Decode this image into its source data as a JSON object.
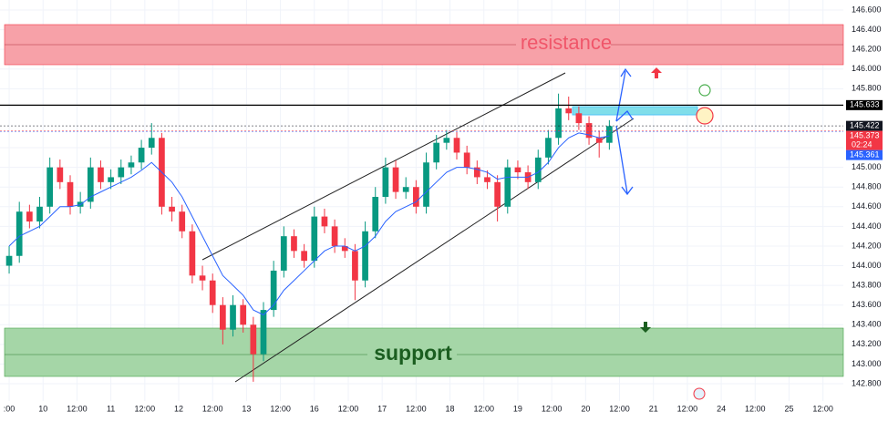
{
  "chart_data": {
    "type": "candlestick",
    "x": [
      0,
      0.3,
      0.6,
      0.9,
      1.2,
      1.5,
      1.8,
      2.1,
      2.4,
      2.7,
      3,
      3.3,
      3.6,
      3.9,
      4.2,
      4.5,
      4.8,
      5.1,
      5.4,
      5.7,
      6,
      6.3,
      6.6,
      6.9,
      7.2,
      7.5,
      7.8,
      8.1,
      8.4,
      8.7,
      9,
      9.3,
      9.6,
      9.9,
      10.2,
      10.5,
      10.8,
      11.1,
      11.4,
      11.7,
      12,
      12.3,
      12.6,
      12.9,
      13.2,
      13.5,
      13.8,
      14.1,
      14.4,
      14.7,
      15,
      15.3,
      15.6,
      15.9,
      16.2,
      16.5,
      16.8,
      17.1,
      17.4,
      17.7
    ],
    "open": [
      144.0,
      144.1,
      144.55,
      144.45,
      144.6,
      145.0,
      144.85,
      144.6,
      144.65,
      145.0,
      144.85,
      144.9,
      145.0,
      145.05,
      145.2,
      145.3,
      144.6,
      144.55,
      144.35,
      143.9,
      143.85,
      143.6,
      143.35,
      143.6,
      143.4,
      143.1,
      143.55,
      143.95,
      144.3,
      144.15,
      144.05,
      144.5,
      144.4,
      144.2,
      144.15,
      143.85,
      144.35,
      144.7,
      145.0,
      144.75,
      144.8,
      144.6,
      145.05,
      145.25,
      145.3,
      145.15,
      145.0,
      144.9,
      144.85,
      144.6,
      145.0,
      144.95,
      144.85,
      145.1,
      145.3,
      145.6,
      145.55,
      145.45,
      145.3,
      145.25
    ],
    "high": [
      144.2,
      144.65,
      144.62,
      144.7,
      145.1,
      145.08,
      144.92,
      144.75,
      145.1,
      145.07,
      144.98,
      145.08,
      145.12,
      145.28,
      145.45,
      145.35,
      144.7,
      144.62,
      144.42,
      144.0,
      143.92,
      143.68,
      143.7,
      143.66,
      143.48,
      143.63,
      144.05,
      144.4,
      144.37,
      144.22,
      144.6,
      144.58,
      144.47,
      144.28,
      144.22,
      144.45,
      144.8,
      145.1,
      145.07,
      144.9,
      144.87,
      145.15,
      145.33,
      145.38,
      145.36,
      145.22,
      145.07,
      144.97,
      144.92,
      145.08,
      145.07,
      145.02,
      145.18,
      145.38,
      145.75,
      145.72,
      145.62,
      145.52,
      145.37,
      145.48
    ],
    "low": [
      143.92,
      144.03,
      144.38,
      144.38,
      144.53,
      144.78,
      144.52,
      144.53,
      144.58,
      144.78,
      144.78,
      144.83,
      144.93,
      144.98,
      145.13,
      144.52,
      144.45,
      144.28,
      143.82,
      143.75,
      143.52,
      143.2,
      143.28,
      143.32,
      142.82,
      143.03,
      143.48,
      143.88,
      144.08,
      143.98,
      143.98,
      144.33,
      144.13,
      144.08,
      143.65,
      143.78,
      144.28,
      144.63,
      144.68,
      144.68,
      144.53,
      144.53,
      144.98,
      145.18,
      145.08,
      144.93,
      144.83,
      144.78,
      144.45,
      144.53,
      144.88,
      144.78,
      144.78,
      145.03,
      145.23,
      145.48,
      145.38,
      145.23,
      145.1,
      145.18
    ],
    "close": [
      144.1,
      144.55,
      144.45,
      144.6,
      145.0,
      144.85,
      144.6,
      144.65,
      145.0,
      144.85,
      144.9,
      145.0,
      145.05,
      145.2,
      145.3,
      144.6,
      144.55,
      144.35,
      143.9,
      143.85,
      143.6,
      143.35,
      143.6,
      143.4,
      143.1,
      143.55,
      143.95,
      144.3,
      144.15,
      144.05,
      144.5,
      144.4,
      144.2,
      144.15,
      143.85,
      144.35,
      144.7,
      145.0,
      144.75,
      144.8,
      144.6,
      145.05,
      145.25,
      145.3,
      145.15,
      145.0,
      144.9,
      144.85,
      144.6,
      145.0,
      144.95,
      144.85,
      145.1,
      145.3,
      145.6,
      145.55,
      145.45,
      145.3,
      145.25,
      145.42
    ],
    "up_color": "#089981",
    "down_color": "#f23645",
    "line": {
      "color": "#2962ff",
      "values": [
        144.2,
        144.3,
        144.35,
        144.4,
        144.5,
        144.6,
        144.6,
        144.62,
        144.7,
        144.75,
        144.8,
        144.85,
        144.9,
        144.97,
        145.05,
        144.95,
        144.85,
        144.7,
        144.5,
        144.3,
        144.1,
        143.9,
        143.8,
        143.7,
        143.55,
        143.5,
        143.6,
        143.75,
        143.85,
        143.95,
        144.05,
        144.15,
        144.2,
        144.2,
        144.15,
        144.2,
        144.3,
        144.45,
        144.55,
        144.6,
        144.65,
        144.75,
        144.85,
        144.95,
        145.0,
        145.0,
        144.98,
        144.95,
        144.88,
        144.9,
        144.9,
        144.9,
        144.95,
        145.05,
        145.2,
        145.3,
        145.35,
        145.33,
        145.3,
        145.32
      ]
    },
    "xlim": [
      -0.27,
      24.6
    ],
    "xticks": [
      {
        "value": 0,
        "label": ":00"
      },
      {
        "value": 1,
        "label": "10"
      },
      {
        "value": 2,
        "label": "12:00"
      },
      {
        "value": 3,
        "label": "11"
      },
      {
        "value": 4,
        "label": "12:00"
      },
      {
        "value": 5,
        "label": "12"
      },
      {
        "value": 6,
        "label": "12:00"
      },
      {
        "value": 7,
        "label": "13"
      },
      {
        "value": 8,
        "label": "12:00"
      },
      {
        "value": 9,
        "label": "16"
      },
      {
        "value": 10,
        "label": "12:00"
      },
      {
        "value": 11,
        "label": "17"
      },
      {
        "value": 12,
        "label": "12:00"
      },
      {
        "value": 13,
        "label": "18"
      },
      {
        "value": 14,
        "label": "12:00"
      },
      {
        "value": 15,
        "label": "19"
      },
      {
        "value": 16,
        "label": "12:00"
      },
      {
        "value": 17,
        "label": "20"
      },
      {
        "value": 18,
        "label": "12:00"
      },
      {
        "value": 19,
        "label": "21"
      },
      {
        "value": 20,
        "label": "12:00"
      },
      {
        "value": 21,
        "label": "24"
      },
      {
        "value": 22,
        "label": "12:00"
      },
      {
        "value": 23,
        "label": "25"
      },
      {
        "value": 24,
        "label": "12:00"
      }
    ],
    "ylim": [
      142.624,
      146.702
    ],
    "yticks": [
      {
        "value": 146.6,
        "label": "146.600"
      },
      {
        "value": 146.4,
        "label": "146.400"
      },
      {
        "value": 146.2,
        "label": "146.200"
      },
      {
        "value": 146.0,
        "label": "146.000"
      },
      {
        "value": 145.8,
        "label": "145.800"
      },
      {
        "value": 145.2,
        "label": "145.200"
      },
      {
        "value": 145.0,
        "label": "145.000"
      },
      {
        "value": 144.8,
        "label": "144.800"
      },
      {
        "value": 144.6,
        "label": "144.600"
      },
      {
        "value": 144.4,
        "label": "144.400"
      },
      {
        "value": 144.2,
        "label": "144.200"
      },
      {
        "value": 144.0,
        "label": "144.000"
      },
      {
        "value": 143.8,
        "label": "143.800"
      },
      {
        "value": 143.6,
        "label": "143.600"
      },
      {
        "value": 143.4,
        "label": "143.400"
      },
      {
        "value": 143.2,
        "label": "143.200"
      },
      {
        "value": 143.0,
        "label": "143.000"
      },
      {
        "value": 142.8,
        "label": "142.800"
      }
    ],
    "price_labels": [
      {
        "value": 145.633,
        "label": "145.633",
        "color": "#000000"
      },
      {
        "value": 145.422,
        "label": "145.422",
        "color": "#131722"
      },
      {
        "value": 145.373,
        "label": "145.373",
        "color": "#f23645"
      },
      {
        "value": 145.361,
        "label": "145.361",
        "color": "#2962ff"
      }
    ],
    "countdown": "02:24",
    "annotations": [
      "resistance",
      "support"
    ]
  }
}
